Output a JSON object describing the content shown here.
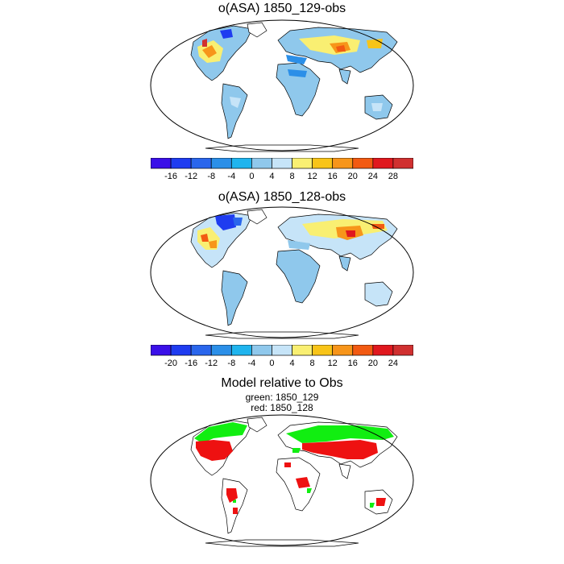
{
  "panels": [
    {
      "title": "o(ASA) 1850_129-obs",
      "colorbar": {
        "colors": [
          "#3a10e8",
          "#1f3cf0",
          "#2a66ec",
          "#2b8fe8",
          "#1fb4ee",
          "#8fc8ec",
          "#c6e4f8",
          "#f9ef72",
          "#f8c418",
          "#f7951a",
          "#f25a12",
          "#e0181e",
          "#d03030"
        ],
        "labels": [
          "-16",
          "-12",
          "-8",
          "-4",
          "0",
          "4",
          "8",
          "12",
          "16",
          "20",
          "24",
          "28"
        ]
      }
    },
    {
      "title": "o(ASA) 1850_128-obs",
      "colorbar": {
        "colors": [
          "#3a10e8",
          "#1f3cf0",
          "#2a66ec",
          "#2b8fe8",
          "#1fb4ee",
          "#8fc8ec",
          "#c6e4f8",
          "#f9ef72",
          "#f8c418",
          "#f7951a",
          "#f25a12",
          "#e0181e",
          "#d03030"
        ],
        "labels": [
          "-20",
          "-16",
          "-12",
          "-8",
          "-4",
          "0",
          "4",
          "8",
          "12",
          "16",
          "20",
          "24"
        ]
      }
    },
    {
      "title": "Model relative to Obs",
      "subtitle_green": "green: 1850_129",
      "subtitle_red": "red: 1850_128"
    }
  ],
  "legend_colors": {
    "green": "#11ee11",
    "red": "#ee1111",
    "land_blue": "#8fc8ec",
    "light_blue": "#c6e4f8"
  }
}
